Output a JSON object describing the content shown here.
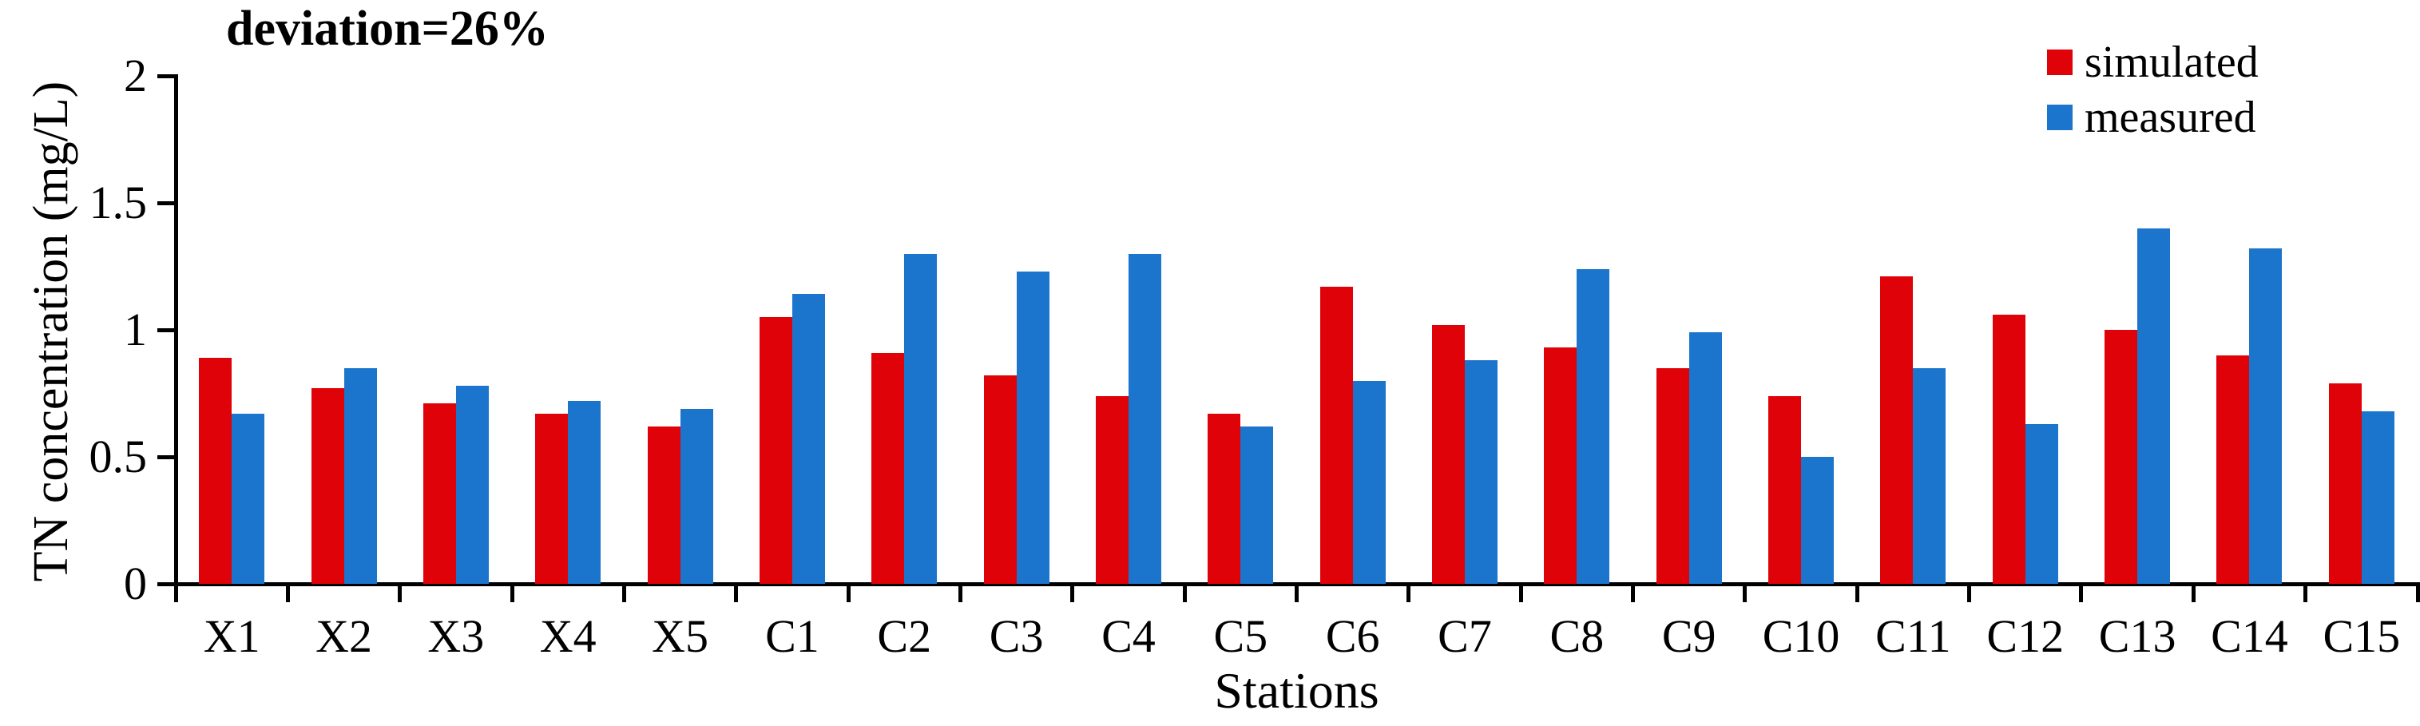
{
  "chart_data": {
    "type": "bar",
    "title": "deviation=26%",
    "xlabel": "Stations",
    "ylabel": "TN concentration (mg/L)",
    "ylim": [
      0,
      2
    ],
    "yticks": [
      0,
      0.5,
      1,
      1.5,
      2
    ],
    "ytick_labels": [
      "0",
      "0.5",
      "1",
      "1.5",
      "2"
    ],
    "grid": false,
    "legend_position": "top-right",
    "categories": [
      "X1",
      "X2",
      "X3",
      "X4",
      "X5",
      "C1",
      "C2",
      "C3",
      "C4",
      "C5",
      "C6",
      "C7",
      "C8",
      "C9",
      "C10",
      "C11",
      "C12",
      "C13",
      "C14",
      "C15"
    ],
    "series": [
      {
        "name": "simulated",
        "color": "#DF0309",
        "values": [
          0.89,
          0.77,
          0.71,
          0.67,
          0.62,
          1.05,
          0.91,
          0.82,
          0.74,
          0.67,
          1.17,
          1.02,
          0.93,
          0.85,
          0.74,
          1.21,
          1.06,
          1.0,
          0.9,
          0.79
        ]
      },
      {
        "name": "measured",
        "color": "#1C75CC",
        "values": [
          0.67,
          0.85,
          0.78,
          0.72,
          0.69,
          1.14,
          1.3,
          1.23,
          1.3,
          0.62,
          0.8,
          0.88,
          1.24,
          0.99,
          0.5,
          0.85,
          0.63,
          1.4,
          1.32,
          0.68
        ]
      }
    ]
  }
}
